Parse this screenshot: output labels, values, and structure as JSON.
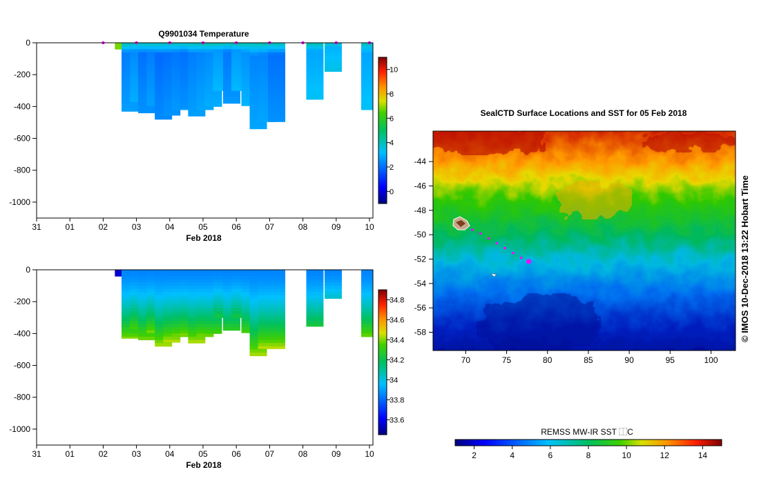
{
  "section_profile": {
    "title": "Q9901034  Temperature",
    "xlabel": "Feb 2018",
    "x_ticks": [
      "31",
      "01",
      "02",
      "03",
      "04",
      "05",
      "06",
      "07",
      "08",
      "09",
      "10"
    ],
    "y_ticks": [
      "0",
      "-200",
      "-400",
      "-600",
      "-800",
      "-1000"
    ],
    "ylim": [
      -1100,
      0
    ],
    "temp_cbar_ticks": [
      "0",
      "2",
      "4",
      "6",
      "8",
      "10"
    ],
    "temp_cbar_range": [
      -1,
      11
    ],
    "sal_cbar_ticks": [
      "33.6",
      "33.8",
      "34",
      "34.2",
      "34.4",
      "34.6",
      "34.8"
    ],
    "sal_cbar_range": [
      33.45,
      34.9
    ]
  },
  "profiles": [
    {
      "day": 2.6,
      "depth": 40,
      "temp_top": 6.8,
      "temp_core": 6.8,
      "sal_top": 33.55,
      "sal_bot": 33.55
    },
    {
      "day": 2.8,
      "depth": 430,
      "temp_top": 4.2,
      "temp_core": 2.2,
      "sal_top": 33.85,
      "sal_bot": 34.4
    },
    {
      "day": 3.05,
      "depth": 370,
      "temp_top": 4.0,
      "temp_core": 2.4,
      "sal_top": 33.85,
      "sal_bot": 34.35
    },
    {
      "day": 3.3,
      "depth": 440,
      "temp_top": 4.0,
      "temp_core": 2.0,
      "sal_top": 33.85,
      "sal_bot": 34.4
    },
    {
      "day": 3.55,
      "depth": 395,
      "temp_top": 4.1,
      "temp_core": 2.2,
      "sal_top": 33.85,
      "sal_bot": 34.4
    },
    {
      "day": 3.8,
      "depth": 485,
      "temp_top": 4.0,
      "temp_core": 1.9,
      "sal_top": 33.85,
      "sal_bot": 34.45
    },
    {
      "day": 4.05,
      "depth": 455,
      "temp_top": 4.0,
      "temp_core": 2.0,
      "sal_top": 33.85,
      "sal_bot": 34.45
    },
    {
      "day": 4.3,
      "depth": 420,
      "temp_top": 4.1,
      "temp_core": 2.1,
      "sal_top": 33.85,
      "sal_bot": 34.4
    },
    {
      "day": 4.55,
      "depth": 410,
      "temp_top": 4.0,
      "temp_core": 2.0,
      "sal_top": 33.85,
      "sal_bot": 34.4
    },
    {
      "day": 4.8,
      "depth": 460,
      "temp_top": 4.1,
      "temp_core": 2.2,
      "sal_top": 33.85,
      "sal_bot": 34.45
    },
    {
      "day": 5.05,
      "depth": 420,
      "temp_top": 4.2,
      "temp_core": 2.3,
      "sal_top": 33.85,
      "sal_bot": 34.4
    },
    {
      "day": 5.3,
      "depth": 400,
      "temp_top": 4.3,
      "temp_core": 2.4,
      "sal_top": 33.85,
      "sal_bot": 34.35
    },
    {
      "day": 5.55,
      "depth": 305,
      "temp_top": 4.3,
      "temp_core": 2.6,
      "sal_top": 33.85,
      "sal_bot": 34.25
    },
    {
      "day": 5.85,
      "depth": 380,
      "temp_top": 4.1,
      "temp_core": 2.1,
      "sal_top": 33.85,
      "sal_bot": 34.3
    },
    {
      "day": 6.1,
      "depth": 305,
      "temp_top": 4.3,
      "temp_core": 2.6,
      "sal_top": 33.85,
      "sal_bot": 34.25
    },
    {
      "day": 6.4,
      "depth": 395,
      "temp_top": 4.2,
      "temp_core": 2.5,
      "sal_top": 33.85,
      "sal_bot": 34.35
    },
    {
      "day": 6.65,
      "depth": 545,
      "temp_top": 4.1,
      "temp_core": 2.3,
      "sal_top": 33.85,
      "sal_bot": 34.45
    },
    {
      "day": 6.9,
      "depth": 495,
      "temp_top": 4.2,
      "temp_core": 2.3,
      "sal_top": 33.85,
      "sal_bot": 34.45
    },
    {
      "day": 7.2,
      "depth": 495,
      "temp_top": 4.1,
      "temp_core": 2.0,
      "sal_top": 33.85,
      "sal_bot": 34.45
    },
    {
      "day": 8.35,
      "depth": 355,
      "temp_top": 4.2,
      "temp_core": 2.8,
      "sal_top": 33.85,
      "sal_bot": 34.25
    },
    {
      "day": 8.9,
      "depth": 185,
      "temp_top": 4.0,
      "temp_core": 3.0,
      "sal_top": 33.85,
      "sal_bot": 34.05
    },
    {
      "day": 10.0,
      "depth": 425,
      "temp_top": 4.0,
      "temp_core": 2.8,
      "sal_top": 33.85,
      "sal_bot": 34.4
    }
  ],
  "surface_markers_days": [
    2.0,
    3.0,
    4.0,
    5.0,
    6.0,
    7.0,
    8.0,
    9.0,
    10.0
  ],
  "sst_map": {
    "title": "SealCTD Surface Locations and SST for 05 Feb 2018",
    "x_ticks": [
      "70",
      "75",
      "80",
      "85",
      "90",
      "95",
      "100"
    ],
    "y_ticks": [
      "-44",
      "-46",
      "-48",
      "-50",
      "-52",
      "-54",
      "-56",
      "-58"
    ],
    "lon_range": [
      66,
      103
    ],
    "lat_range": [
      -59.5,
      -41.5
    ],
    "track": [
      {
        "lon": 70.8,
        "lat": -49.6
      },
      {
        "lon": 71.8,
        "lat": -49.9
      },
      {
        "lon": 72.8,
        "lat": -50.3
      },
      {
        "lon": 73.8,
        "lat": -50.7
      },
      {
        "lon": 74.8,
        "lat": -51.1
      },
      {
        "lon": 75.8,
        "lat": -51.5
      },
      {
        "lon": 76.8,
        "lat": -51.9
      },
      {
        "lon": 77.7,
        "lat": -52.2
      }
    ],
    "current_position": {
      "lon": 77.7,
      "lat": -52.2
    },
    "credit": "© IMOS 10-Dec-2018 13:22 Hobart Time"
  },
  "sst_colorbar": {
    "label": "REMSS MW-IR SST ⿰C",
    "ticks": [
      "2",
      "4",
      "6",
      "8",
      "10",
      "12",
      "14"
    ],
    "range": [
      1,
      15
    ]
  },
  "colors": {
    "marker": "#ff00ff",
    "axis": "#000000"
  }
}
